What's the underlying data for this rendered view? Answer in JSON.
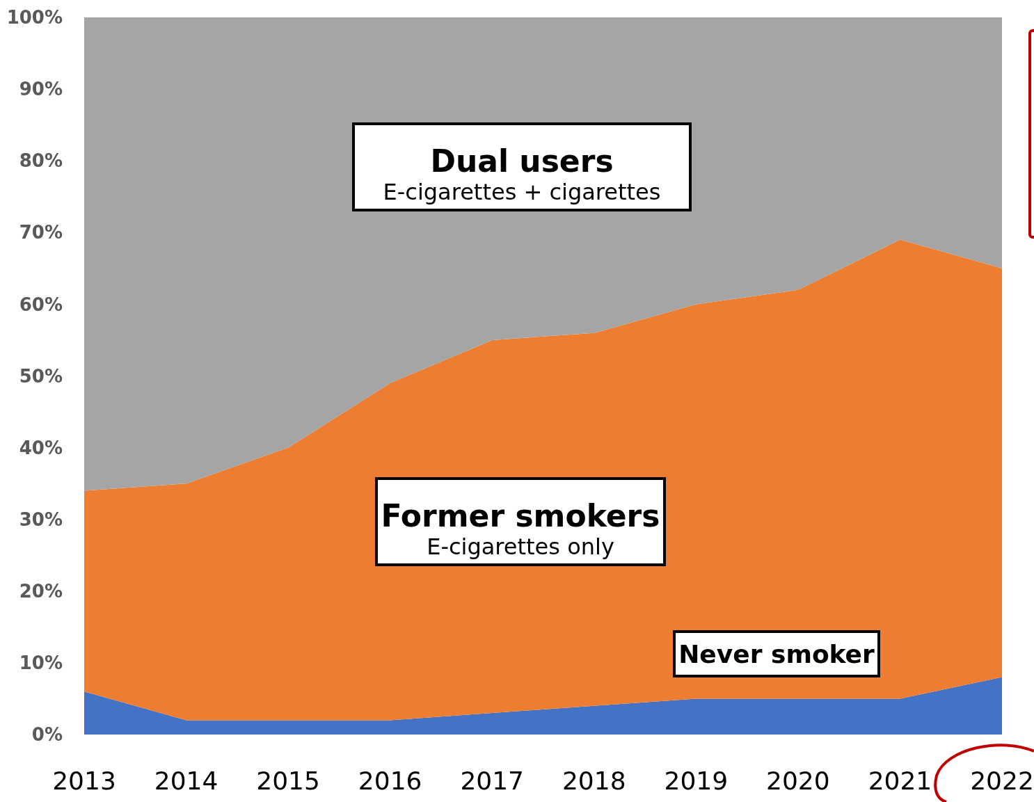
{
  "chart_data": {
    "type": "area",
    "stacked": true,
    "categories": [
      "2013",
      "2014",
      "2015",
      "2016",
      "2017",
      "2018",
      "2019",
      "2020",
      "2021",
      "2022"
    ],
    "series": [
      {
        "name": "Never smoker",
        "color": "#4472c4",
        "values": [
          6,
          2,
          2,
          2,
          3,
          4,
          5,
          5,
          5,
          8
        ]
      },
      {
        "name": "Former smokers",
        "color": "#ed7d31",
        "values": [
          28,
          33,
          38,
          47,
          52,
          52,
          55,
          57,
          64,
          57
        ]
      },
      {
        "name": "Dual users",
        "color": "#a5a5a5",
        "values": [
          66,
          65,
          60,
          51,
          45,
          44,
          40,
          38,
          31,
          35
        ]
      }
    ],
    "ylim": [
      0,
      100
    ],
    "yticks": [
      {
        "value": 0,
        "label": "0%"
      },
      {
        "value": 10,
        "label": "10%"
      },
      {
        "value": 20,
        "label": "20%"
      },
      {
        "value": 30,
        "label": "30%"
      },
      {
        "value": 40,
        "label": "40%"
      },
      {
        "value": 50,
        "label": "50%"
      },
      {
        "value": 60,
        "label": "60%"
      },
      {
        "value": 70,
        "label": "70%"
      },
      {
        "value": 80,
        "label": "80%"
      },
      {
        "value": 90,
        "label": "90%"
      },
      {
        "value": 100,
        "label": "100%"
      }
    ],
    "annotations": [
      "E-cigarettes + cigarettes",
      "E-cigarettes only"
    ],
    "grid": false
  }
}
